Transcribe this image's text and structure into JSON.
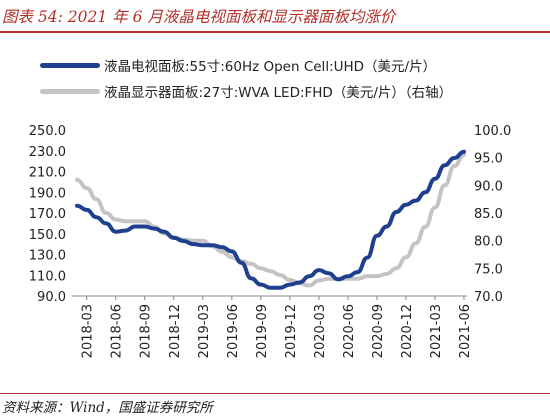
{
  "figure": {
    "title": "图表 54:  2021 年 6 月液晶电视面板和显示器面板均涨价",
    "source": "资料来源：Wind，国盛证券研究所"
  },
  "chart_data": {
    "type": "line",
    "title": "图表 54:  2021 年 6 月液晶电视面板和显示器面板均涨价",
    "xlabel": "",
    "ylabel": "",
    "x_ticks": [
      "2018-03",
      "2018-06",
      "2018-09",
      "2018-12",
      "2019-03",
      "2019-06",
      "2019-09",
      "2019-12",
      "2020-03",
      "2020-06",
      "2020-09",
      "2020-12",
      "2021-03",
      "2021-06"
    ],
    "y_left": {
      "range": [
        90,
        250
      ],
      "ticks": [
        "90.0",
        "110.0",
        "130.0",
        "150.0",
        "170.0",
        "190.0",
        "210.0",
        "230.0",
        "250.0"
      ]
    },
    "y_right": {
      "range": [
        70,
        100
      ],
      "ticks": [
        "70.0",
        "75.0",
        "80.0",
        "85.0",
        "90.0",
        "95.0",
        "100.0"
      ]
    },
    "legend_placement": "top-left",
    "grid": false,
    "series": [
      {
        "name": "液晶电视面板:55寸:60Hz Open Cell:UHD（美元/片）",
        "axis": "left",
        "color": "#1f3f8f",
        "points": [
          [
            "2018-02",
            177
          ],
          [
            "2018-03",
            173
          ],
          [
            "2018-04",
            166
          ],
          [
            "2018-05",
            160
          ],
          [
            "2018-06",
            152
          ],
          [
            "2018-07",
            153
          ],
          [
            "2018-08",
            157
          ],
          [
            "2018-09",
            157
          ],
          [
            "2018-10",
            155
          ],
          [
            "2018-11",
            152
          ],
          [
            "2018-12",
            146
          ],
          [
            "2019-01",
            143
          ],
          [
            "2019-02",
            140
          ],
          [
            "2019-03",
            139
          ],
          [
            "2019-04",
            139
          ],
          [
            "2019-05",
            137
          ],
          [
            "2019-06",
            133
          ],
          [
            "2019-07",
            122
          ],
          [
            "2019-08",
            107
          ],
          [
            "2019-09",
            101
          ],
          [
            "2019-10",
            98
          ],
          [
            "2019-11",
            98
          ],
          [
            "2019-12",
            101
          ],
          [
            "2020-01",
            103
          ],
          [
            "2020-02",
            109
          ],
          [
            "2020-03",
            115
          ],
          [
            "2020-04",
            112
          ],
          [
            "2020-05",
            106
          ],
          [
            "2020-06",
            109
          ],
          [
            "2020-07",
            113
          ],
          [
            "2020-08",
            127
          ],
          [
            "2020-09",
            148
          ],
          [
            "2020-10",
            157
          ],
          [
            "2020-11",
            171
          ],
          [
            "2020-12",
            178
          ],
          [
            "2021-01",
            182
          ],
          [
            "2021-02",
            190
          ],
          [
            "2021-03",
            203
          ],
          [
            "2021-04",
            216
          ],
          [
            "2021-05",
            223
          ],
          [
            "2021-06",
            229
          ]
        ]
      },
      {
        "name": "液晶显示器面板:27寸:WVA LED:FHD（美元/片）（右轴）",
        "axis": "right",
        "color": "#c4c4c4",
        "points": [
          [
            "2018-02",
            91.0
          ],
          [
            "2018-03",
            89.5
          ],
          [
            "2018-04",
            87.5
          ],
          [
            "2018-05",
            85.0
          ],
          [
            "2018-06",
            83.8
          ],
          [
            "2018-07",
            83.5
          ],
          [
            "2018-08",
            83.5
          ],
          [
            "2018-09",
            83.5
          ],
          [
            "2018-10",
            82.5
          ],
          [
            "2018-11",
            81.3
          ],
          [
            "2018-12",
            80.6
          ],
          [
            "2019-01",
            80.2
          ],
          [
            "2019-02",
            80.0
          ],
          [
            "2019-03",
            80.0
          ],
          [
            "2019-04",
            79.0
          ],
          [
            "2019-05",
            78.0
          ],
          [
            "2019-06",
            77.0
          ],
          [
            "2019-07",
            76.3
          ],
          [
            "2019-08",
            75.8
          ],
          [
            "2019-09",
            75.0
          ],
          [
            "2019-10",
            74.5
          ],
          [
            "2019-11",
            73.8
          ],
          [
            "2019-12",
            72.9
          ],
          [
            "2020-01",
            72.3
          ],
          [
            "2020-02",
            71.9
          ],
          [
            "2020-03",
            72.8
          ],
          [
            "2020-04",
            73.1
          ],
          [
            "2020-05",
            73.1
          ],
          [
            "2020-06",
            73.1
          ],
          [
            "2020-07",
            73.1
          ],
          [
            "2020-08",
            73.6
          ],
          [
            "2020-09",
            73.6
          ],
          [
            "2020-10",
            74.0
          ],
          [
            "2020-11",
            75.0
          ],
          [
            "2020-12",
            77.0
          ],
          [
            "2021-01",
            79.5
          ],
          [
            "2021-02",
            82.5
          ],
          [
            "2021-03",
            86.0
          ],
          [
            "2021-04",
            90.0
          ],
          [
            "2021-05",
            93.5
          ],
          [
            "2021-06",
            95.5
          ]
        ]
      }
    ]
  }
}
